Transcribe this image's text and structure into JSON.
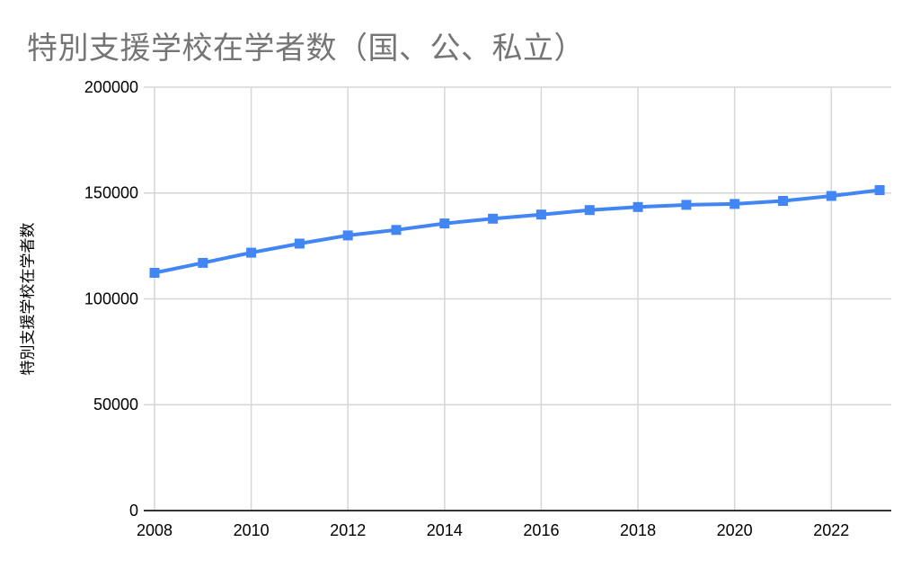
{
  "chart": {
    "title": "特別支援学校在学者数（国、公、私立）"
  },
  "chart_data": {
    "type": "line",
    "title": "特別支援学校在学者数（国、公、私立）",
    "xlabel": "",
    "ylabel": "特別支援学校在学者数",
    "x": [
      2008,
      2009,
      2010,
      2011,
      2012,
      2013,
      2014,
      2015,
      2016,
      2017,
      2018,
      2019,
      2020,
      2021,
      2022,
      2023
    ],
    "values": [
      112334,
      117035,
      121815,
      126123,
      129994,
      132570,
      135617,
      137894,
      139821,
      141944,
      143379,
      144434,
      144823,
      146285,
      148635,
      151362
    ],
    "series_name": "特別支援学校在学者数",
    "xlim": [
      2008,
      2023.24
    ],
    "ylim": [
      0,
      200000
    ],
    "x_ticks": [
      2008,
      2010,
      2012,
      2014,
      2016,
      2018,
      2020,
      2022
    ],
    "y_ticks": [
      0,
      50000,
      100000,
      150000,
      200000
    ],
    "grid": true,
    "legend": "none",
    "marker": "square"
  },
  "colors": {
    "line": "#4285f4",
    "marker": "#4285f4",
    "grid": "#d6d6d6",
    "axis": "#333333",
    "title": "#757575",
    "tick_label": "#000000",
    "background": "#ffffff"
  }
}
